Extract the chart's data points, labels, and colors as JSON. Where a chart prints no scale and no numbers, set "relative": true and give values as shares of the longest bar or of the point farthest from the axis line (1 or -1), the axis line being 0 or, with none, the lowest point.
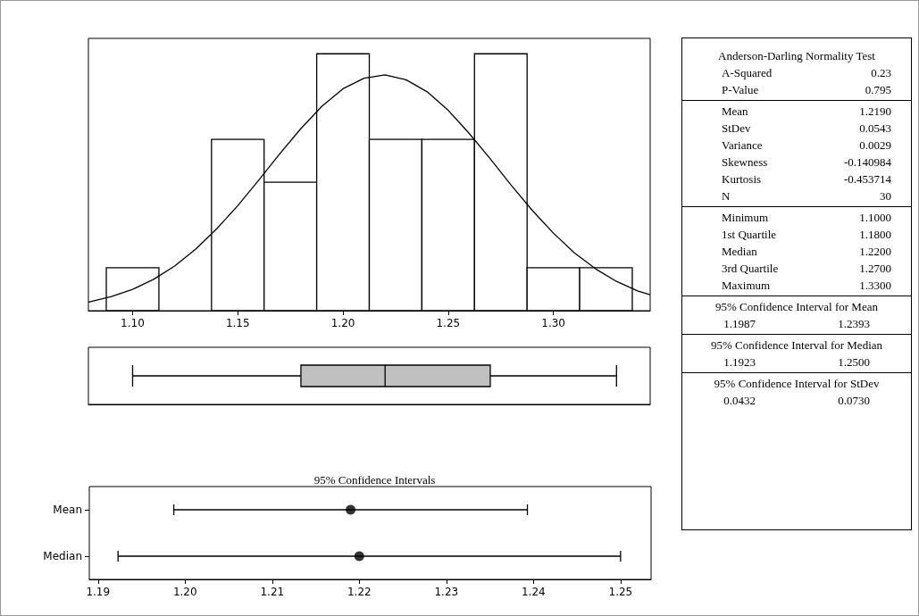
{
  "chart_data": [
    {
      "type": "histogram",
      "relative": true,
      "bins": [
        1.0875,
        1.1125,
        1.1375,
        1.1625,
        1.1875,
        1.2125,
        1.2375,
        1.2625,
        1.2875,
        1.3125,
        1.3375
      ],
      "xlim": [
        1.079,
        1.346
      ],
      "xticks": [
        {
          "value": 1.1,
          "label": "1.10"
        },
        {
          "value": 1.15,
          "label": "1.15"
        },
        {
          "value": 1.2,
          "label": "1.20"
        },
        {
          "value": 1.25,
          "label": "1.25"
        },
        {
          "value": 1.3,
          "label": "1.30"
        }
      ],
      "series": [
        {
          "type": "histogram",
          "color": "#ffffff",
          "values": [
            0.167,
            0,
            0.667,
            0.5,
            1,
            0.667,
            0.667,
            1,
            0.167,
            0.167
          ]
        },
        {
          "type": "line",
          "color": "#000000",
          "x": [
            1.079,
            1.08,
            1.09,
            1.1,
            1.11,
            1.12,
            1.13,
            1.14,
            1.15,
            1.16,
            1.17,
            1.18,
            1.19,
            1.2,
            1.21,
            1.22,
            1.23,
            1.24,
            1.25,
            1.26,
            1.27,
            1.28,
            1.29,
            1.3,
            1.31,
            1.32,
            1.33,
            1.34,
            1.346
          ],
          "values": [
            0.033,
            0.035,
            0.055,
            0.083,
            0.122,
            0.174,
            0.24,
            0.319,
            0.409,
            0.509,
            0.611,
            0.709,
            0.796,
            0.864,
            0.905,
            0.918,
            0.899,
            0.852,
            0.78,
            0.69,
            0.591,
            0.488,
            0.39,
            0.302,
            0.225,
            0.163,
            0.114,
            0.077,
            0.062
          ]
        }
      ]
    },
    {
      "type": "box",
      "orientation": "horizontal",
      "categories": [
        null
      ],
      "color": "#c0c0c0",
      "xlim": [
        1.079,
        1.346
      ],
      "boxes": [
        {
          "low": 1.1,
          "q1": 1.18,
          "median": 1.22,
          "q3": 1.27,
          "high": 1.33
        }
      ]
    },
    {
      "type": "scatter",
      "orientation": "horizontal",
      "title": "95% Confidence Intervals",
      "categories": [
        "Mean",
        "Median"
      ],
      "color": "#000000",
      "values": [
        1.219,
        1.22
      ],
      "errors": [
        [
          1.1987,
          1.2393
        ],
        [
          1.1923,
          1.25
        ]
      ],
      "xlim": [
        1.189,
        1.2535
      ],
      "xticks": [
        {
          "value": 1.19,
          "label": "1.19"
        },
        {
          "value": 1.2,
          "label": "1.20"
        },
        {
          "value": 1.21,
          "label": "1.21"
        },
        {
          "value": 1.22,
          "label": "1.22"
        },
        {
          "value": 1.23,
          "label": "1.23"
        },
        {
          "value": 1.24,
          "label": "1.24"
        },
        {
          "value": 1.25,
          "label": "1.25"
        }
      ]
    },
    {
      "type": "other",
      "annotations": [
        "Anderson-Darling Normality Test",
        "A-Squared",
        "0.23",
        "P-Value",
        "0.795",
        "Mean",
        "1.2190",
        "StDev",
        "0.0543",
        "Variance",
        "0.0029",
        "Skewness",
        "-0.140984",
        "Kurtosis",
        "-0.453714",
        "N",
        "30",
        "Minimum",
        "1.1000",
        "1st Quartile",
        "1.1800",
        "Median",
        "1.2200",
        "3rd Quartile",
        "1.2700",
        "Maximum",
        "1.3300",
        "95% Confidence Interval for Mean",
        "1.1987",
        "1.2393",
        "95% Confidence Interval for Median",
        "1.1923",
        "1.2500",
        "95% Confidence Interval for StDev",
        "0.0432",
        "0.0730"
      ]
    }
  ]
}
